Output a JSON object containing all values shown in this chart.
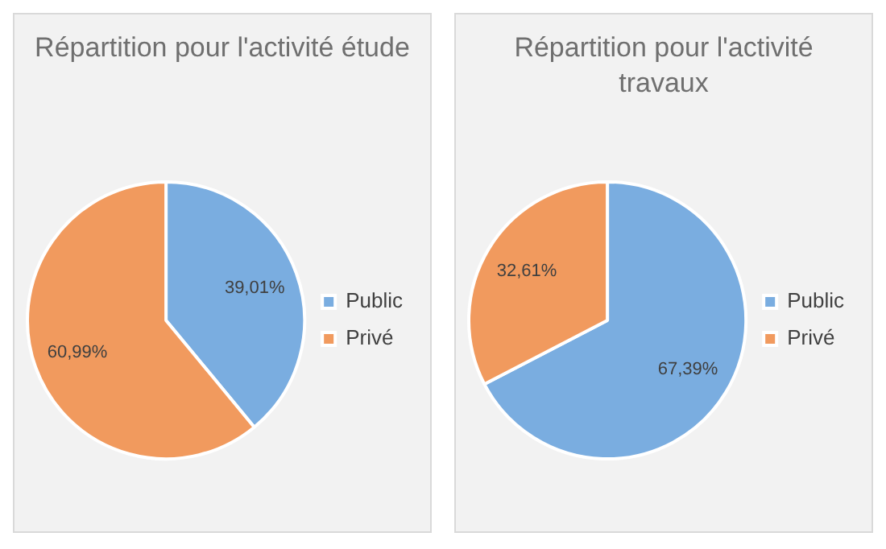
{
  "chart_data": [
    {
      "type": "pie",
      "title": "Répartition pour l'activité étude",
      "categories": [
        "Public",
        "Privé"
      ],
      "values": [
        39.01,
        60.99
      ],
      "colors": [
        "#7aade0",
        "#f19a5e"
      ],
      "value_labels": [
        "39,01%",
        "60,99%"
      ],
      "legend": "right"
    },
    {
      "type": "pie",
      "title": "Répartition pour l'activité travaux",
      "categories": [
        "Public",
        "Privé"
      ],
      "values": [
        67.39,
        32.61
      ],
      "colors": [
        "#7aade0",
        "#f19a5e"
      ],
      "value_labels": [
        "67,39%",
        "32,61%"
      ],
      "legend": "right"
    }
  ]
}
